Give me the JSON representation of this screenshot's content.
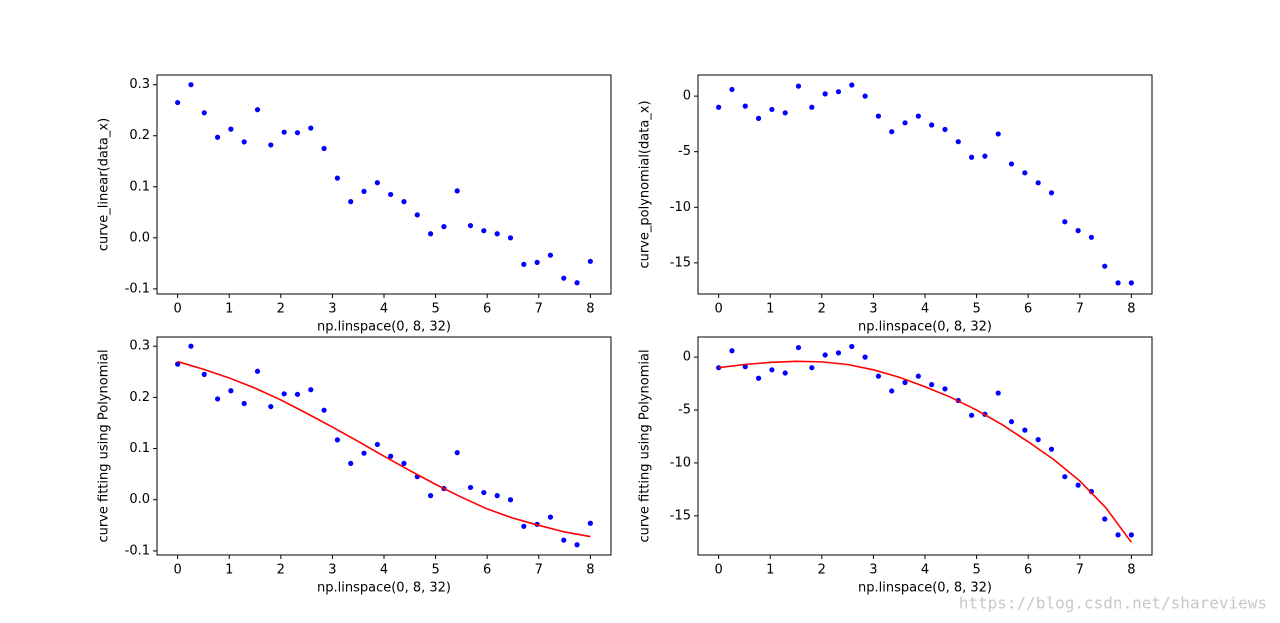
{
  "chart_data": [
    {
      "type": "scatter",
      "xlabel": "np.linspace(0, 8, 32)",
      "ylabel": "curve_linear(data_x)",
      "xlim": [
        -0.4,
        8.4
      ],
      "ylim": [
        -0.11,
        0.319
      ],
      "xticks": [
        0,
        1,
        2,
        3,
        4,
        5,
        6,
        7,
        8
      ],
      "yticks": [
        -0.1,
        {
          "value": 0,
          "label": "0.0"
        },
        0.1,
        0.2,
        0.3
      ],
      "series": [
        {
          "mode": "markers",
          "color": "#0000ff",
          "x": [
            0,
            0.258,
            0.516,
            0.774,
            1.032,
            1.29,
            1.548,
            1.806,
            2.065,
            2.323,
            2.581,
            2.839,
            3.097,
            3.355,
            3.613,
            3.871,
            4.129,
            4.387,
            4.645,
            4.903,
            5.161,
            5.419,
            5.677,
            5.935,
            6.194,
            6.452,
            6.71,
            6.968,
            7.226,
            7.484,
            7.742,
            8
          ],
          "values": [
            0.265,
            0.3,
            0.245,
            0.197,
            0.213,
            0.188,
            0.251,
            0.182,
            0.207,
            0.206,
            0.215,
            0.175,
            0.117,
            0.071,
            0.091,
            0.108,
            0.085,
            0.071,
            0.045,
            0.008,
            0.022,
            0.092,
            0.024,
            0.014,
            0.008,
            0.0,
            -0.052,
            -0.048,
            -0.034,
            -0.079,
            -0.088,
            -0.046
          ]
        }
      ]
    },
    {
      "type": "scatter",
      "xlabel": "np.linspace(0, 8, 32)",
      "ylabel": "curve_polynomial(data_x)",
      "xlim": [
        -0.4,
        8.4
      ],
      "ylim": [
        -17.8,
        1.9
      ],
      "xticks": [
        0,
        1,
        2,
        3,
        4,
        5,
        6,
        7,
        8
      ],
      "yticks": [
        -15,
        -10,
        -5,
        0
      ],
      "series": [
        {
          "mode": "markers",
          "color": "#0000ff",
          "x": [
            0,
            0.258,
            0.516,
            0.774,
            1.032,
            1.29,
            1.548,
            1.806,
            2.065,
            2.323,
            2.581,
            2.839,
            3.097,
            3.355,
            3.613,
            3.871,
            4.129,
            4.387,
            4.645,
            4.903,
            5.161,
            5.419,
            5.677,
            5.935,
            6.194,
            6.452,
            6.71,
            6.968,
            7.226,
            7.484,
            7.742,
            8
          ],
          "values": [
            -1.0,
            0.6,
            -0.9,
            -2.0,
            -1.2,
            -1.5,
            0.9,
            -1.0,
            0.2,
            0.4,
            1.0,
            0.0,
            -1.8,
            -3.2,
            -2.4,
            -1.8,
            -2.6,
            -3.0,
            -4.1,
            -5.5,
            -5.4,
            -3.4,
            -6.1,
            -6.9,
            -7.8,
            -8.7,
            -11.3,
            -12.1,
            -12.7,
            -15.3,
            -16.8,
            -16.8
          ]
        }
      ]
    },
    {
      "type": "scatter",
      "xlabel": "np.linspace(0, 8, 32)",
      "ylabel": "curve fitting using Polynomial",
      "xlim": [
        -0.4,
        8.4
      ],
      "ylim": [
        -0.108,
        0.318
      ],
      "xticks": [
        0,
        1,
        2,
        3,
        4,
        5,
        6,
        7,
        8
      ],
      "yticks": [
        -0.1,
        {
          "value": 0,
          "label": "0.0"
        },
        0.1,
        0.2,
        0.3
      ],
      "series": [
        {
          "mode": "markers",
          "color": "#0000ff",
          "x": [
            0,
            0.258,
            0.516,
            0.774,
            1.032,
            1.29,
            1.548,
            1.806,
            2.065,
            2.323,
            2.581,
            2.839,
            3.097,
            3.355,
            3.613,
            3.871,
            4.129,
            4.387,
            4.645,
            4.903,
            5.161,
            5.419,
            5.677,
            5.935,
            6.194,
            6.452,
            6.71,
            6.968,
            7.226,
            7.484,
            7.742,
            8
          ],
          "values": [
            0.265,
            0.3,
            0.245,
            0.197,
            0.213,
            0.188,
            0.251,
            0.182,
            0.207,
            0.206,
            0.215,
            0.175,
            0.117,
            0.071,
            0.091,
            0.108,
            0.085,
            0.071,
            0.045,
            0.008,
            0.022,
            0.092,
            0.024,
            0.014,
            0.008,
            0.0,
            -0.052,
            -0.048,
            -0.034,
            -0.079,
            -0.088,
            -0.046
          ]
        },
        {
          "mode": "line",
          "color": "#ff0000",
          "x": [
            0,
            0.5,
            1,
            1.5,
            2,
            2.5,
            3,
            3.5,
            4,
            4.5,
            5,
            5.5,
            6,
            6.5,
            7,
            7.5,
            8
          ],
          "values": [
            0.27,
            0.255,
            0.238,
            0.218,
            0.195,
            0.169,
            0.142,
            0.114,
            0.085,
            0.057,
            0.03,
            0.005,
            -0.018,
            -0.036,
            -0.05,
            -0.063,
            -0.072
          ]
        }
      ]
    },
    {
      "type": "scatter",
      "xlabel": "np.linspace(0, 8, 32)",
      "ylabel": "curve fitting using Polynomial",
      "xlim": [
        -0.4,
        8.4
      ],
      "ylim": [
        -18.7,
        1.9
      ],
      "xticks": [
        0,
        1,
        2,
        3,
        4,
        5,
        6,
        7,
        8
      ],
      "yticks": [
        -15,
        -10,
        -5,
        0
      ],
      "series": [
        {
          "mode": "markers",
          "color": "#0000ff",
          "x": [
            0,
            0.258,
            0.516,
            0.774,
            1.032,
            1.29,
            1.548,
            1.806,
            2.065,
            2.323,
            2.581,
            2.839,
            3.097,
            3.355,
            3.613,
            3.871,
            4.129,
            4.387,
            4.645,
            4.903,
            5.161,
            5.419,
            5.677,
            5.935,
            6.194,
            6.452,
            6.71,
            6.968,
            7.226,
            7.484,
            7.742,
            8
          ],
          "values": [
            -1.0,
            0.6,
            -0.9,
            -2.0,
            -1.2,
            -1.5,
            0.9,
            -1.0,
            0.2,
            0.4,
            1.0,
            0.0,
            -1.8,
            -3.2,
            -2.4,
            -1.8,
            -2.6,
            -3.0,
            -4.1,
            -5.5,
            -5.4,
            -3.4,
            -6.1,
            -6.9,
            -7.8,
            -8.7,
            -11.3,
            -12.1,
            -12.7,
            -15.3,
            -16.8,
            -16.8
          ]
        },
        {
          "mode": "line",
          "color": "#ff0000",
          "x": [
            0,
            0.5,
            1,
            1.5,
            2,
            2.5,
            3,
            3.5,
            4,
            4.5,
            5,
            5.5,
            6,
            6.5,
            7,
            7.5,
            8
          ],
          "values": [
            -1.0,
            -0.7,
            -0.5,
            -0.4,
            -0.45,
            -0.7,
            -1.2,
            -1.9,
            -2.8,
            -3.8,
            -5.0,
            -6.4,
            -8.0,
            -9.7,
            -11.7,
            -14.2,
            -17.5
          ]
        }
      ]
    }
  ],
  "watermark": "https://blog.csdn.net/shareviews"
}
